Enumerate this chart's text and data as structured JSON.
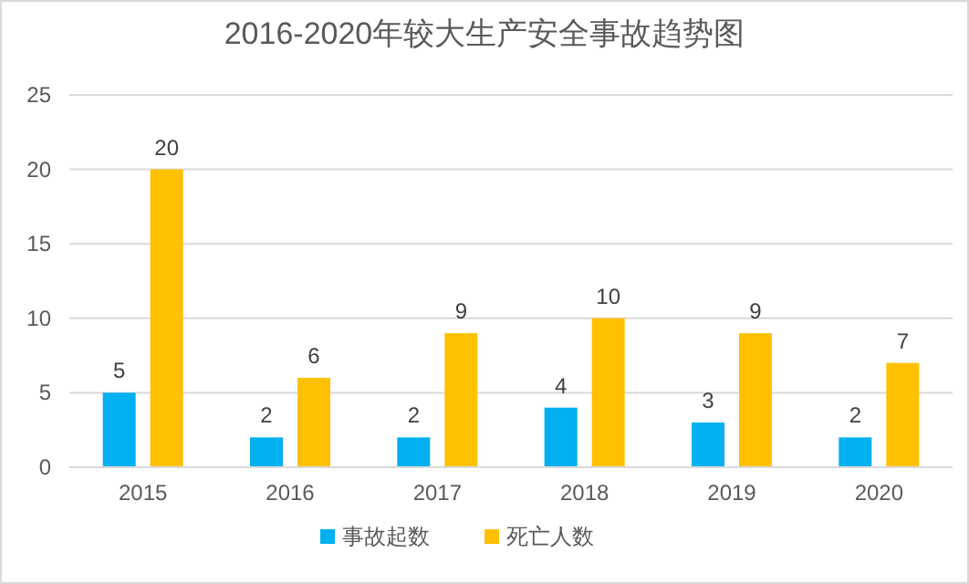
{
  "chart_data": {
    "type": "bar",
    "title": "2016-2020年较大生产安全事故趋势图",
    "categories": [
      "2015",
      "2016",
      "2017",
      "2018",
      "2019",
      "2020"
    ],
    "series": [
      {
        "name": "事故起数",
        "color": "#00b0f0",
        "values": [
          5,
          2,
          2,
          4,
          3,
          2
        ]
      },
      {
        "name": "死亡人数",
        "color": "#ffc000",
        "values": [
          20,
          6,
          9,
          10,
          9,
          7
        ]
      }
    ],
    "ylim": [
      0,
      25
    ],
    "yticks": [
      0,
      5,
      10,
      15,
      20,
      25
    ],
    "grid": "y",
    "legend": "bottom",
    "data_labels": true
  }
}
